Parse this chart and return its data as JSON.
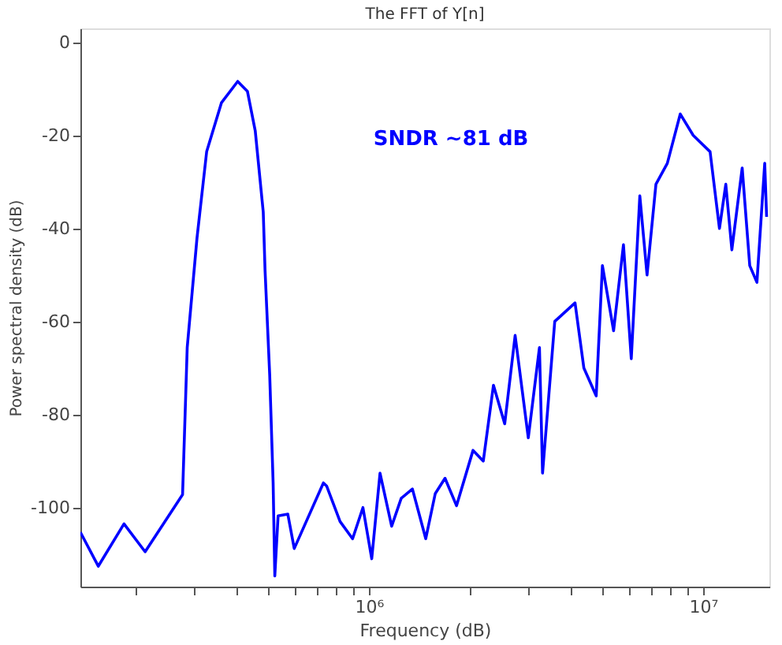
{
  "chart_data": {
    "type": "line",
    "title": "The FFT of Y[n]",
    "xlabel": "Frequency (dB)",
    "ylabel": "Power spectral density (dB)",
    "log": "x",
    "xlim": [
      137000,
      15800000
    ],
    "ylim": [
      -117,
      3
    ],
    "xticks": [
      {
        "value": 200000,
        "label": null
      },
      {
        "value": 300000,
        "label": null
      },
      {
        "value": 400000,
        "label": null
      },
      {
        "value": 500000,
        "label": null
      },
      {
        "value": 600000,
        "label": null
      },
      {
        "value": 700000,
        "label": null
      },
      {
        "value": 800000,
        "label": null
      },
      {
        "value": 900000,
        "label": null
      },
      {
        "value": 1000000,
        "label": "10⁶"
      },
      {
        "value": 2000000,
        "label": null
      },
      {
        "value": 3000000,
        "label": null
      },
      {
        "value": 4000000,
        "label": null
      },
      {
        "value": 5000000,
        "label": null
      },
      {
        "value": 6000000,
        "label": null
      },
      {
        "value": 7000000,
        "label": null
      },
      {
        "value": 8000000,
        "label": null
      },
      {
        "value": 9000000,
        "label": null
      },
      {
        "value": 10000000,
        "label": "10⁷"
      }
    ],
    "yticks": [
      -100,
      -80,
      -60,
      -40,
      -20,
      0
    ],
    "grid": false,
    "legend": false,
    "marker": "none",
    "line_style": "solid",
    "annotations": [
      "SNDR ~81 dB"
    ],
    "series": [
      {
        "color": "#0000ff",
        "x": [
          137000,
          155000,
          185000,
          214000,
          277000,
          286000,
          306000,
          327000,
          362000,
          405000,
          433000,
          457000,
          483000,
          489000,
          505000,
          517000,
          523000,
          535000,
          572000,
          598000,
          731000,
          748000,
          820000,
          894000,
          960000,
          1020000,
          1080000,
          1170000,
          1250000,
          1350000,
          1480000,
          1580000,
          1690000,
          1830000,
          2050000,
          2200000,
          2360000,
          2550000,
          2740000,
          3000000,
          3240000,
          3310000,
          3600000,
          4140000,
          4400000,
          4790000,
          5000000,
          5400000,
          5780000,
          6100000,
          6470000,
          6800000,
          7230000,
          7820000,
          8550000,
          9350000,
          10500000,
          11200000,
          11700000,
          12200000,
          13100000,
          13800000,
          14500000,
          15300000,
          15500000
        ],
        "values": [
          -105.3,
          -112.6,
          -103.5,
          -109.5,
          -97.2,
          -65.6,
          -42,
          -23.5,
          -13,
          -8.4,
          -10.5,
          -19,
          -36.5,
          -49,
          -71.6,
          -94.7,
          -114.7,
          -101.8,
          -101.4,
          -108.8,
          -94.7,
          -95.4,
          -103,
          -106.7,
          -100,
          -111,
          -92.6,
          -104,
          -98,
          -96,
          -106.7,
          -97,
          -93.7,
          -99.6,
          -87.7,
          -90,
          -73.7,
          -82,
          -63,
          -85,
          -65.6,
          -92.6,
          -60,
          -56,
          -70,
          -76,
          -48,
          -62,
          -43.5,
          -68,
          -33,
          -50,
          -30.5,
          -26,
          -15.4,
          -20,
          -23.5,
          -40,
          -30.5,
          -44.6,
          -27,
          -48,
          -51.6,
          -26,
          -37.5
        ]
      }
    ]
  }
}
